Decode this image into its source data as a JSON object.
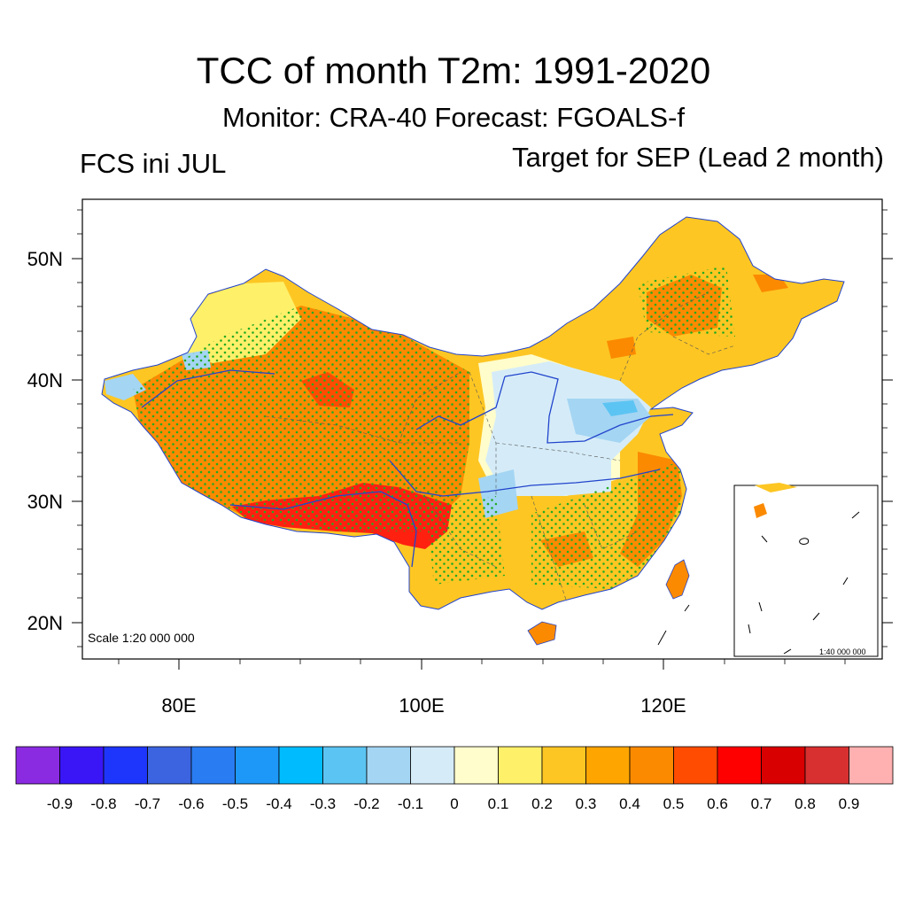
{
  "header": {
    "title": "TCC of month T2m: 1991-2020",
    "subtitle": "Monitor: CRA-40   Forecast: FGOALS-f",
    "left_label": "FCS ini JUL",
    "right_label": "Target for SEP (Lead 2 month)"
  },
  "map": {
    "scale_text": "Scale 1:20 000 000",
    "inset_scale_text": "1:40 000 000",
    "lat_ticks": [
      "50N",
      "40N",
      "30N",
      "20N"
    ],
    "lon_ticks": [
      "80E",
      "100E",
      "120E"
    ],
    "region_colors": {
      "strong_positive": "#ff2010",
      "positive": "#fb8a00",
      "moderate": "#fdc623",
      "weak": "#fff06a",
      "near_zero": "#fffdcc",
      "weak_negative": "#d5ecf8",
      "negative": "#a4d5f3",
      "stipple": "#22aa22",
      "river": "#2244cc"
    }
  },
  "colorbar": {
    "colors": [
      "#8a2be2",
      "#3a16f6",
      "#1e36fb",
      "#3c64e0",
      "#2a7cf3",
      "#1e98f8",
      "#00bcff",
      "#5cc4f3",
      "#a4d5f3",
      "#d5ecf8",
      "#fffdcc",
      "#fff06a",
      "#fdc623",
      "#ffa500",
      "#fb8a00",
      "#ff4c00",
      "#ff0000",
      "#d80000",
      "#d83030",
      "#ffb0b0"
    ],
    "labels": [
      "-0.9",
      "-0.8",
      "-0.7",
      "-0.6",
      "-0.5",
      "-0.4",
      "-0.3",
      "-0.2",
      "-0.1",
      "0",
      "0.1",
      "0.2",
      "0.3",
      "0.4",
      "0.5",
      "0.6",
      "0.7",
      "0.8",
      "0.9"
    ]
  }
}
